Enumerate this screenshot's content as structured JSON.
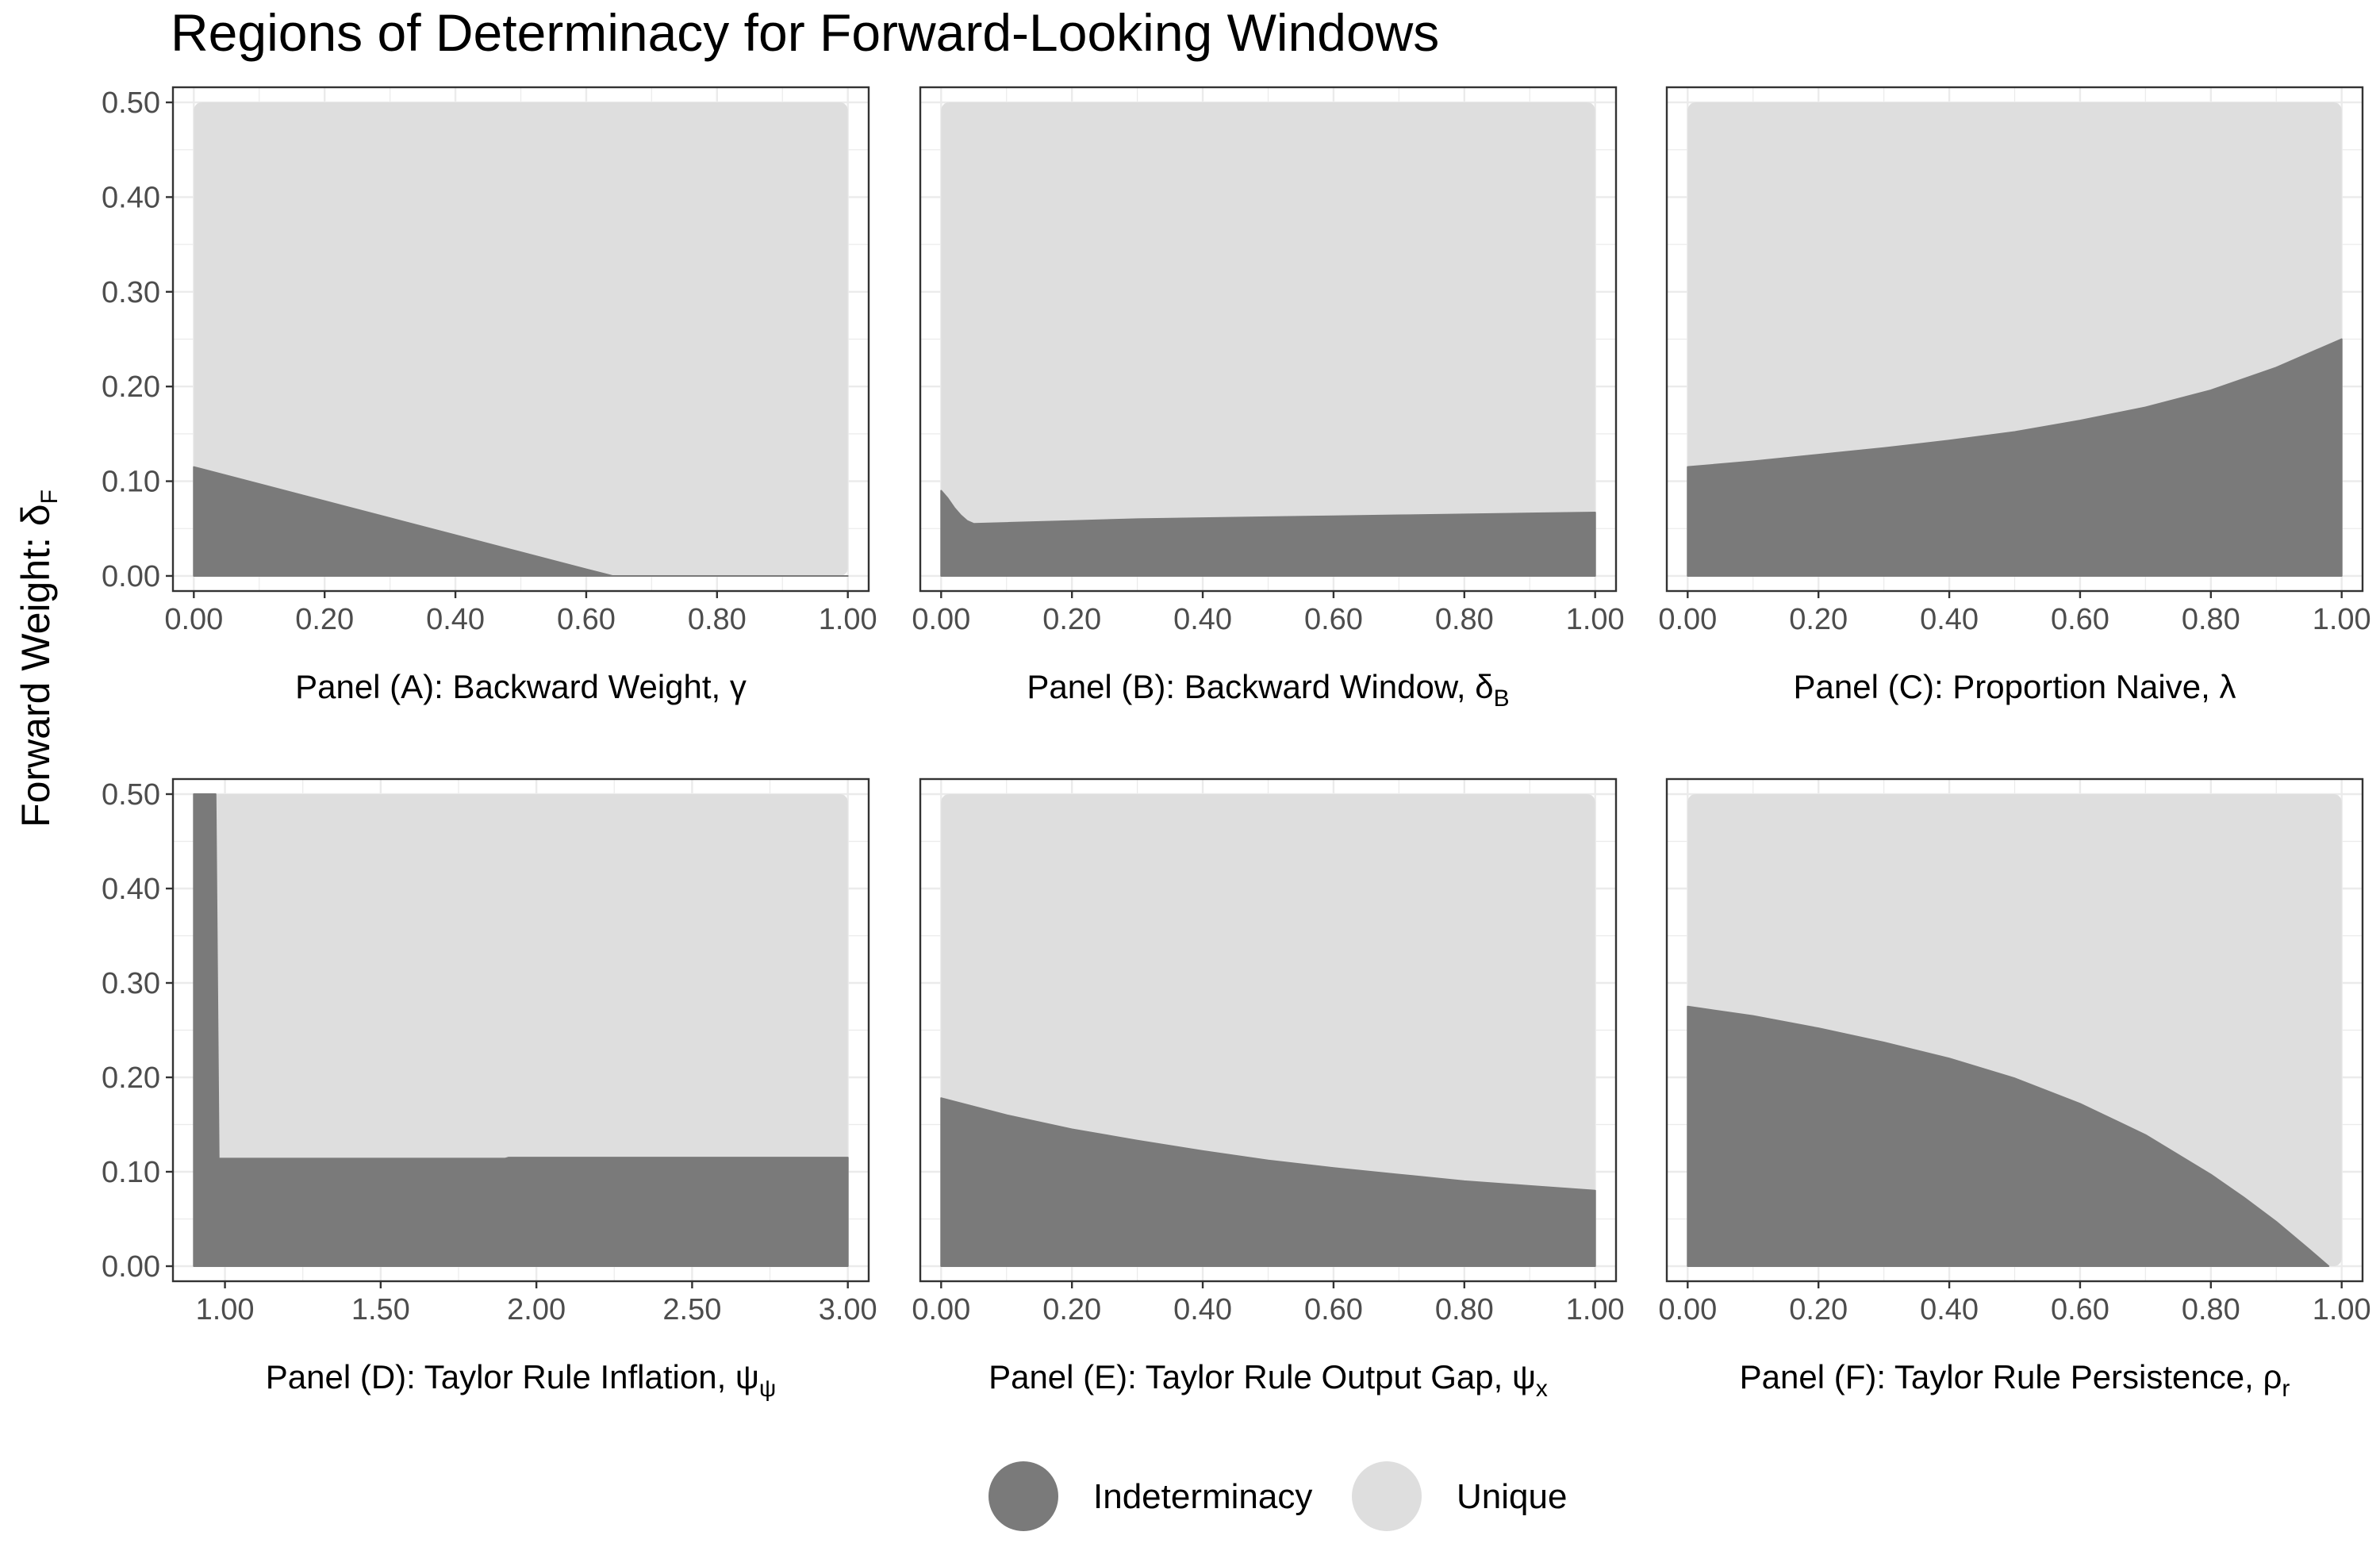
{
  "chart_data": {
    "type": "area",
    "title": "Regions of Determinacy for Forward-Looking Windows",
    "ylabel": "Forward Weight: δ",
    "ylabel_sub": "F",
    "ylim": [
      0,
      0.5
    ],
    "y_ticks": [
      "0.00",
      "0.10",
      "0.20",
      "0.30",
      "0.40",
      "0.50"
    ],
    "y_tick_values": [
      0,
      0.1,
      0.2,
      0.3,
      0.4,
      0.5
    ],
    "grid": true,
    "legend_position": "bottom",
    "legend": [
      {
        "label": "Indeterminacy",
        "color": "#7a7a7a"
      },
      {
        "label": "Unique",
        "color": "#dedede"
      }
    ],
    "colors": {
      "indeterminacy": "#7a7a7a",
      "unique": "#dedede",
      "panel_border": "#333333",
      "grid": "#ebebeb"
    },
    "panels": [
      {
        "id": "A",
        "xlabel": "Panel (A): Backward Weight, γ",
        "xlabel_sub": "",
        "xlim": [
          0,
          1
        ],
        "x_ticks": [
          "0.00",
          "0.20",
          "0.40",
          "0.60",
          "0.80",
          "1.00"
        ],
        "x_tick_values": [
          0,
          0.2,
          0.4,
          0.6,
          0.8,
          1
        ],
        "boundary": {
          "x": [
            0,
            0.1,
            0.2,
            0.3,
            0.4,
            0.5,
            0.6,
            0.64,
            0.65,
            1.0
          ],
          "y": [
            0.115,
            0.097,
            0.079,
            0.061,
            0.043,
            0.025,
            0.007,
            0.0,
            0.0,
            0.0
          ]
        }
      },
      {
        "id": "B",
        "xlabel": "Panel (B): Backward Window, δ",
        "xlabel_sub": "B",
        "xlim": [
          0,
          1
        ],
        "x_ticks": [
          "0.00",
          "0.20",
          "0.40",
          "0.60",
          "0.80",
          "1.00"
        ],
        "x_tick_values": [
          0,
          0.2,
          0.4,
          0.6,
          0.8,
          1
        ],
        "boundary": {
          "x": [
            0,
            0.01,
            0.02,
            0.03,
            0.04,
            0.05,
            0.1,
            0.2,
            0.3,
            0.4,
            0.5,
            0.6,
            0.7,
            0.8,
            0.9,
            1.0
          ],
          "y": [
            0.09,
            0.082,
            0.072,
            0.064,
            0.058,
            0.055,
            0.056,
            0.058,
            0.06,
            0.061,
            0.062,
            0.063,
            0.064,
            0.065,
            0.066,
            0.067
          ]
        }
      },
      {
        "id": "C",
        "xlabel": "Panel (C): Proportion Naive, λ",
        "xlabel_sub": "",
        "xlim": [
          0,
          1
        ],
        "x_ticks": [
          "0.00",
          "0.20",
          "0.40",
          "0.60",
          "0.80",
          "1.00"
        ],
        "x_tick_values": [
          0,
          0.2,
          0.4,
          0.6,
          0.8,
          1
        ],
        "boundary": {
          "x": [
            0,
            0.1,
            0.2,
            0.3,
            0.4,
            0.5,
            0.6,
            0.7,
            0.8,
            0.9,
            1.0
          ],
          "y": [
            0.115,
            0.121,
            0.128,
            0.135,
            0.143,
            0.152,
            0.164,
            0.178,
            0.196,
            0.22,
            0.25
          ]
        }
      },
      {
        "id": "D",
        "xlabel": "Panel (D): Taylor Rule Inflation, ψ",
        "xlabel_sub": "ψ",
        "xlim": [
          0.9,
          3.0
        ],
        "x_ticks": [
          "1.00",
          "1.50",
          "2.00",
          "2.50",
          "3.00"
        ],
        "x_tick_values": [
          1.0,
          1.5,
          2.0,
          2.5,
          3.0
        ],
        "boundary": {
          "x": [
            0.9,
            0.97,
            0.98,
            1.5,
            1.9,
            1.91,
            2.5,
            3.0
          ],
          "y": [
            0.5,
            0.5,
            0.114,
            0.114,
            0.114,
            0.115,
            0.115,
            0.115
          ]
        }
      },
      {
        "id": "E",
        "xlabel": "Panel (E): Taylor Rule Output Gap, ψ",
        "xlabel_sub": "x",
        "xlim": [
          0,
          1
        ],
        "x_ticks": [
          "0.00",
          "0.20",
          "0.40",
          "0.60",
          "0.80",
          "1.00"
        ],
        "x_tick_values": [
          0,
          0.2,
          0.4,
          0.6,
          0.8,
          1
        ],
        "boundary": {
          "x": [
            0,
            0.1,
            0.2,
            0.3,
            0.4,
            0.5,
            0.6,
            0.7,
            0.8,
            0.9,
            1.0
          ],
          "y": [
            0.178,
            0.16,
            0.145,
            0.133,
            0.122,
            0.112,
            0.104,
            0.097,
            0.09,
            0.085,
            0.08
          ]
        }
      },
      {
        "id": "F",
        "xlabel": "Panel (F): Taylor Rule Persistence, ρ",
        "xlabel_sub": "r",
        "xlim": [
          0,
          1
        ],
        "x_ticks": [
          "0.00",
          "0.20",
          "0.40",
          "0.60",
          "0.80",
          "1.00"
        ],
        "x_tick_values": [
          0,
          0.2,
          0.4,
          0.6,
          0.8,
          1
        ],
        "boundary": {
          "x": [
            0,
            0.1,
            0.2,
            0.3,
            0.4,
            0.5,
            0.6,
            0.7,
            0.8,
            0.85,
            0.9,
            0.95,
            0.98
          ],
          "y": [
            0.275,
            0.265,
            0.252,
            0.237,
            0.22,
            0.199,
            0.172,
            0.139,
            0.097,
            0.073,
            0.047,
            0.018,
            0.0
          ]
        }
      }
    ]
  }
}
